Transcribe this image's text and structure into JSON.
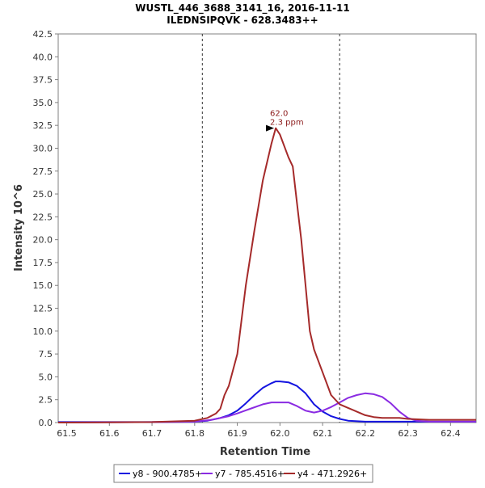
{
  "chart_data": {
    "type": "line",
    "title": "WUSTL_446_3688_3141_16, 2016-11-11",
    "subtitle": "ILEDNSIPQVK - 628.3483++",
    "xlabel": "Retention Time",
    "ylabel": "Intensity 10^6",
    "xlim": [
      61.48,
      62.46
    ],
    "ylim": [
      0,
      42.5
    ],
    "xticks": [
      "61.5",
      "61.6",
      "61.7",
      "61.8",
      "61.9",
      "62.0",
      "62.1",
      "62.2",
      "62.3",
      "62.4"
    ],
    "yticks": [
      "0.0",
      "2.5",
      "5.0",
      "7.5",
      "10.0",
      "12.5",
      "15.0",
      "17.5",
      "20.0",
      "22.5",
      "25.0",
      "27.5",
      "30.0",
      "32.5",
      "35.0",
      "37.5",
      "40.0",
      "42.5"
    ],
    "grid": false,
    "legend_position": "bottom",
    "boundaries": [
      61.818,
      62.14
    ],
    "annotation": {
      "x": 61.99,
      "y": 32.2,
      "rt_label": "62.0",
      "ppm_label": "2.3 ppm",
      "color": "#8b1a1a"
    },
    "series": [
      {
        "name": "y8 - 900.4785+",
        "color": "#1414e0",
        "points": [
          [
            61.48,
            0.05
          ],
          [
            61.7,
            0.05
          ],
          [
            61.8,
            0.1
          ],
          [
            61.83,
            0.2
          ],
          [
            61.86,
            0.5
          ],
          [
            61.88,
            0.8
          ],
          [
            61.9,
            1.3
          ],
          [
            61.92,
            2.1
          ],
          [
            61.94,
            3.0
          ],
          [
            61.96,
            3.8
          ],
          [
            61.98,
            4.3
          ],
          [
            61.99,
            4.5
          ],
          [
            62.0,
            4.5
          ],
          [
            62.02,
            4.4
          ],
          [
            62.04,
            4.0
          ],
          [
            62.06,
            3.2
          ],
          [
            62.08,
            2.0
          ],
          [
            62.1,
            1.2
          ],
          [
            62.12,
            0.7
          ],
          [
            62.14,
            0.4
          ],
          [
            62.16,
            0.2
          ],
          [
            62.2,
            0.1
          ],
          [
            62.3,
            0.1
          ],
          [
            62.46,
            0.1
          ]
        ]
      },
      {
        "name": "y7 - 785.4516+",
        "color": "#8a2be2",
        "points": [
          [
            61.48,
            0.0
          ],
          [
            61.72,
            0.05
          ],
          [
            61.8,
            0.1
          ],
          [
            61.84,
            0.3
          ],
          [
            61.88,
            0.7
          ],
          [
            61.9,
            1.0
          ],
          [
            61.93,
            1.5
          ],
          [
            61.96,
            2.0
          ],
          [
            61.98,
            2.2
          ],
          [
            62.0,
            2.2
          ],
          [
            62.02,
            2.2
          ],
          [
            62.04,
            1.8
          ],
          [
            62.06,
            1.3
          ],
          [
            62.08,
            1.1
          ],
          [
            62.1,
            1.3
          ],
          [
            62.12,
            1.7
          ],
          [
            62.14,
            2.2
          ],
          [
            62.16,
            2.7
          ],
          [
            62.18,
            3.0
          ],
          [
            62.2,
            3.2
          ],
          [
            62.22,
            3.1
          ],
          [
            62.24,
            2.8
          ],
          [
            62.26,
            2.1
          ],
          [
            62.28,
            1.2
          ],
          [
            62.3,
            0.5
          ],
          [
            62.32,
            0.2
          ],
          [
            62.35,
            0.1
          ],
          [
            62.46,
            0.1
          ]
        ]
      },
      {
        "name": "y4 - 471.2926+",
        "color": "#a52a2a",
        "points": [
          [
            61.48,
            0.0
          ],
          [
            61.7,
            0.05
          ],
          [
            61.8,
            0.2
          ],
          [
            61.83,
            0.5
          ],
          [
            61.85,
            1.0
          ],
          [
            61.86,
            1.5
          ],
          [
            61.87,
            3.0
          ],
          [
            61.88,
            4.0
          ],
          [
            61.9,
            7.5
          ],
          [
            61.92,
            15.0
          ],
          [
            61.94,
            21.0
          ],
          [
            61.96,
            26.5
          ],
          [
            61.98,
            30.5
          ],
          [
            61.99,
            32.2
          ],
          [
            62.0,
            31.5
          ],
          [
            62.02,
            29.0
          ],
          [
            62.03,
            28.0
          ],
          [
            62.04,
            24.0
          ],
          [
            62.05,
            20.0
          ],
          [
            62.06,
            15.0
          ],
          [
            62.07,
            10.0
          ],
          [
            62.08,
            8.0
          ],
          [
            62.1,
            5.5
          ],
          [
            62.12,
            3.0
          ],
          [
            62.14,
            2.0
          ],
          [
            62.16,
            1.6
          ],
          [
            62.18,
            1.2
          ],
          [
            62.2,
            0.8
          ],
          [
            62.22,
            0.6
          ],
          [
            62.24,
            0.5
          ],
          [
            62.28,
            0.5
          ],
          [
            62.3,
            0.4
          ],
          [
            62.35,
            0.3
          ],
          [
            62.46,
            0.3
          ]
        ]
      }
    ]
  }
}
